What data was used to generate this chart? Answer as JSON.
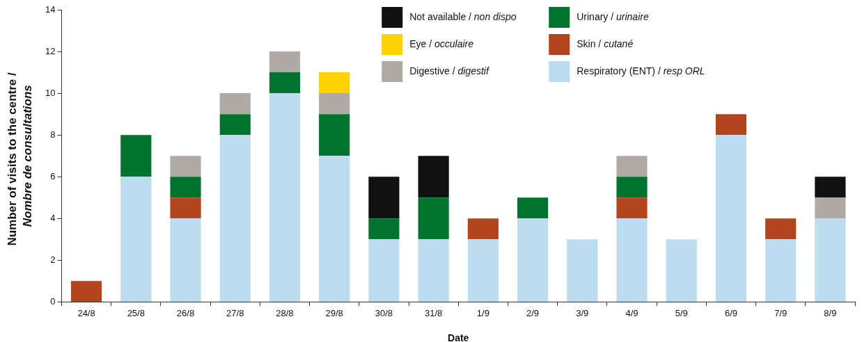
{
  "chart_data": {
    "type": "bar",
    "stacked": true,
    "xlabel": "Date",
    "ylabel": "Number of visits to the centre / Nombre de consultations",
    "categories": [
      "24/8",
      "25/8",
      "26/8",
      "27/8",
      "28/8",
      "29/8",
      "30/8",
      "31/8",
      "1/9",
      "2/9",
      "3/9",
      "4/9",
      "5/9",
      "6/9",
      "7/9",
      "8/9"
    ],
    "series": [
      {
        "name": "Respiratory (ENT) / resp ORL",
        "color": "#bcdcf0",
        "values": [
          0,
          6,
          4,
          8,
          10,
          7,
          3,
          3,
          3,
          4,
          3,
          4,
          3,
          8,
          3,
          4
        ]
      },
      {
        "name": "Skin / cutané",
        "color": "#b2441e",
        "values": [
          1,
          0,
          1,
          0,
          0,
          0,
          0,
          0,
          1,
          0,
          0,
          1,
          0,
          1,
          1,
          0
        ]
      },
      {
        "name": "Urinary / urinaire",
        "color": "#00732f",
        "values": [
          0,
          2,
          1,
          1,
          1,
          2,
          1,
          2,
          0,
          1,
          0,
          1,
          0,
          0,
          0,
          0
        ]
      },
      {
        "name": "Digestive / digestif",
        "color": "#b0aaa4",
        "values": [
          0,
          0,
          1,
          1,
          1,
          1,
          0,
          0,
          0,
          0,
          0,
          1,
          0,
          0,
          0,
          1
        ]
      },
      {
        "name": "Eye / occulaire",
        "color": "#ffd200",
        "values": [
          0,
          0,
          0,
          0,
          0,
          1,
          0,
          0,
          0,
          0,
          0,
          0,
          0,
          0,
          0,
          0
        ]
      },
      {
        "name": "Not available / non dispo",
        "color": "#111111",
        "values": [
          0,
          0,
          0,
          0,
          0,
          0,
          2,
          2,
          0,
          0,
          0,
          0,
          0,
          0,
          0,
          1
        ]
      }
    ],
    "ylim": [
      0,
      14
    ],
    "yticks": [
      0,
      2,
      4,
      6,
      8,
      10,
      12,
      14
    ],
    "grid": false,
    "legend": "top"
  }
}
